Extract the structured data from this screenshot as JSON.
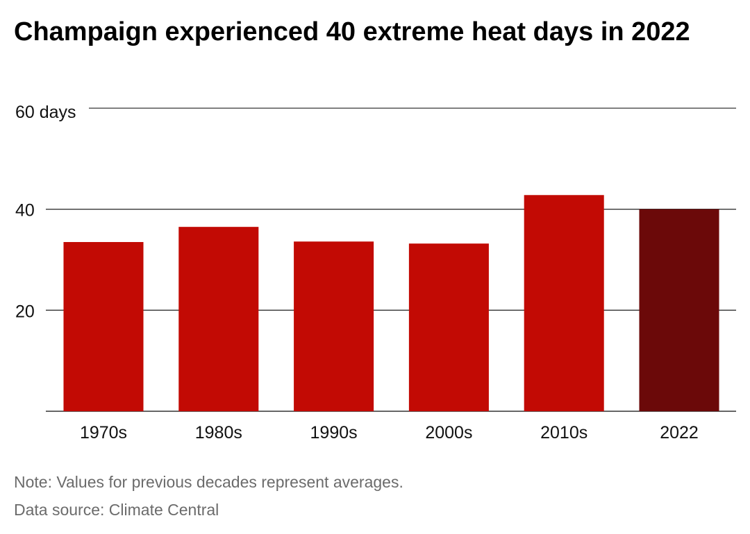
{
  "header": {
    "title": "Champaign experienced 40 extreme heat days in 2022"
  },
  "footer": {
    "note": "Note: Values for previous decades represent averages.",
    "source": "Data source: Climate Central"
  },
  "chart_data": {
    "type": "bar",
    "title": "Champaign experienced 40 extreme heat days in 2022",
    "xlabel": "",
    "ylabel": "",
    "categories": [
      "1970s",
      "1980s",
      "1990s",
      "2000s",
      "2010s",
      "2022"
    ],
    "values": [
      33.5,
      36.5,
      33.6,
      33.2,
      42.8,
      40
    ],
    "ylim": [
      0,
      60
    ],
    "yticks": [
      {
        "value": 20,
        "label": "20"
      },
      {
        "value": 40,
        "label": "40"
      },
      {
        "value": 60,
        "label": "60 days"
      }
    ],
    "grid": true,
    "legend": "none",
    "colors": {
      "bar": "#c20a04",
      "highlight": "#6b0909",
      "gridline": "#333333"
    },
    "highlight_category": "2022"
  }
}
